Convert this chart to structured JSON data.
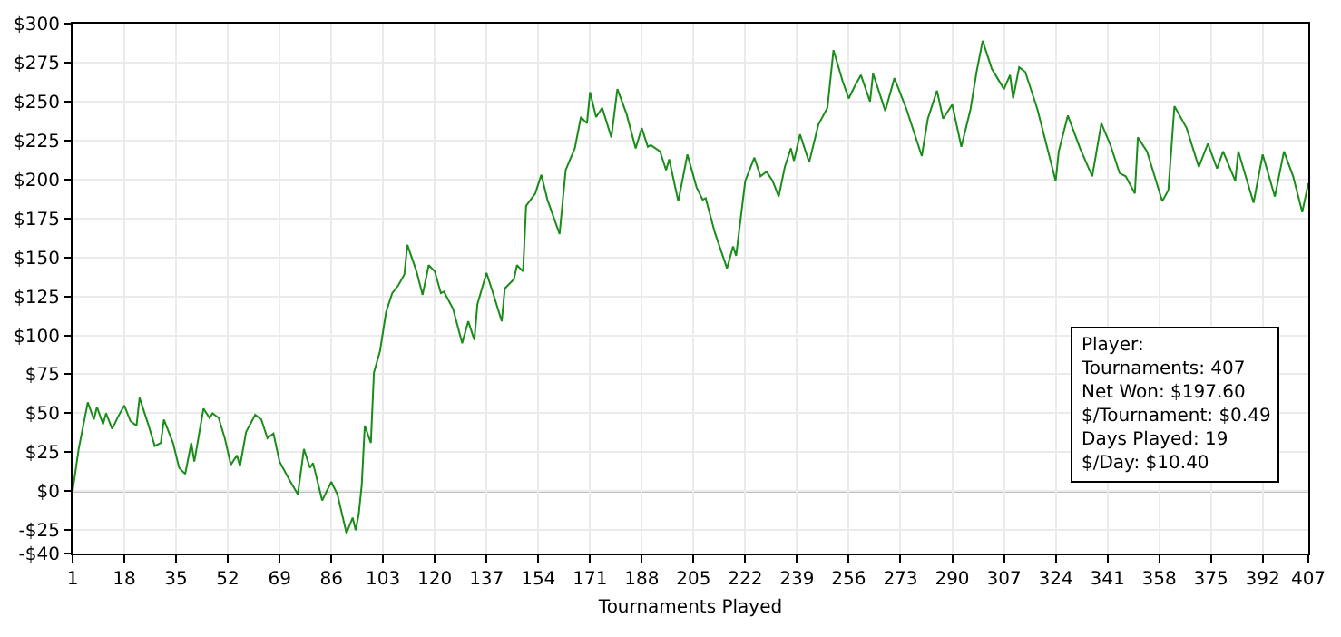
{
  "chart_data": {
    "type": "line",
    "xlabel": "Tournaments Played",
    "x": [
      1,
      3,
      6,
      8,
      9,
      11,
      12,
      14,
      16,
      18,
      20,
      22,
      23,
      26,
      28,
      30,
      31,
      34,
      36,
      38,
      40,
      41,
      44,
      46,
      47,
      49,
      51,
      53,
      55,
      56,
      58,
      61,
      63,
      65,
      67,
      69,
      72,
      75,
      77,
      79,
      80,
      83,
      86,
      88,
      91,
      93,
      94,
      95,
      96,
      97,
      99,
      100,
      102,
      104,
      106,
      108,
      110,
      111,
      114,
      116,
      118,
      120,
      122,
      123,
      126,
      129,
      131,
      133,
      134,
      137,
      139,
      142,
      143,
      146,
      147,
      149,
      150,
      153,
      155,
      157,
      161,
      163,
      166,
      168,
      170,
      171,
      173,
      175,
      178,
      180,
      183,
      186,
      188,
      190,
      191,
      194,
      196,
      197,
      200,
      203,
      206,
      208,
      209,
      212,
      216,
      218,
      219,
      222,
      225,
      227,
      229,
      231,
      233,
      235,
      237,
      238,
      240,
      243,
      246,
      249,
      251,
      254,
      256,
      258,
      260,
      263,
      264,
      268,
      271,
      275,
      280,
      282,
      285,
      287,
      290,
      293,
      296,
      298,
      300,
      303,
      307,
      309,
      310,
      312,
      314,
      318,
      324,
      325,
      328,
      332,
      336,
      339,
      342,
      345,
      347,
      350,
      351,
      354,
      359,
      361,
      363,
      367,
      371,
      374,
      377,
      379,
      383,
      384,
      389,
      392,
      396,
      399,
      402,
      405,
      407
    ],
    "series": [
      {
        "color": "#1a8c1a",
        "values": [
          0,
          27,
          57,
          46,
          54,
          43,
          50,
          40,
          48,
          55,
          45,
          42,
          60,
          42,
          29,
          31,
          46,
          31,
          15,
          11,
          31,
          19,
          53,
          47,
          50,
          47,
          34,
          17,
          23,
          16,
          38,
          49,
          46,
          34,
          37,
          19,
          8,
          -2,
          27,
          15,
          18,
          -6,
          6,
          -2,
          -27,
          -17,
          -25,
          -15,
          4,
          42,
          31,
          76,
          90,
          115,
          127,
          132,
          139,
          158,
          141,
          126,
          145,
          141,
          127,
          128,
          117,
          95,
          109,
          97,
          120,
          140,
          128,
          109,
          130,
          136,
          145,
          141,
          183,
          191,
          203,
          187,
          165,
          206,
          220,
          240,
          236,
          256,
          240,
          246,
          227,
          258,
          242,
          220,
          233,
          221,
          222,
          218,
          206,
          213,
          186,
          216,
          195,
          187,
          188,
          166,
          143,
          157,
          151,
          199,
          214,
          202,
          205,
          199,
          189,
          208,
          220,
          212,
          229,
          211,
          235,
          246,
          283,
          263,
          252,
          260,
          267,
          250,
          268,
          244,
          265,
          245,
          215,
          239,
          257,
          239,
          248,
          221,
          245,
          269,
          289,
          271,
          258,
          267,
          252,
          272,
          269,
          245,
          199,
          218,
          241,
          220,
          202,
          236,
          222,
          204,
          202,
          191,
          227,
          218,
          186,
          193,
          247,
          233,
          208,
          223,
          207,
          218,
          199,
          218,
          185,
          216,
          189,
          218,
          202,
          179,
          197.6
        ]
      }
    ],
    "xlim": [
      1,
      407
    ],
    "xticks": [
      1,
      18,
      35,
      52,
      69,
      86,
      103,
      120,
      137,
      154,
      171,
      188,
      205,
      222,
      239,
      256,
      273,
      290,
      307,
      324,
      341,
      358,
      375,
      392,
      407
    ],
    "ylim": [
      -40,
      300
    ],
    "yticks": [
      {
        "value": -40,
        "label": "-$40"
      },
      {
        "value": -25,
        "label": "-$25"
      },
      {
        "value": 0,
        "label": "$0"
      },
      {
        "value": 25,
        "label": "$25"
      },
      {
        "value": 50,
        "label": "$50"
      },
      {
        "value": 75,
        "label": "$75"
      },
      {
        "value": 100,
        "label": "$100"
      },
      {
        "value": 125,
        "label": "$125"
      },
      {
        "value": 150,
        "label": "$150"
      },
      {
        "value": 175,
        "label": "$175"
      },
      {
        "value": 200,
        "label": "$200"
      },
      {
        "value": 225,
        "label": "$225"
      },
      {
        "value": 250,
        "label": "$250"
      },
      {
        "value": 275,
        "label": "$275"
      },
      {
        "value": 300,
        "label": "$300"
      }
    ],
    "ref_lines": [
      {
        "axis": "y",
        "value": 0,
        "color": "#000000"
      }
    ],
    "annotations": [
      "Player:",
      "Tournaments: 407",
      "Net Won: $197.60",
      "$/Tournament: $0.49",
      "Days Played: 19",
      "$/Day: $10.40"
    ],
    "grid": true,
    "marker": "none",
    "line_style": "solid"
  }
}
